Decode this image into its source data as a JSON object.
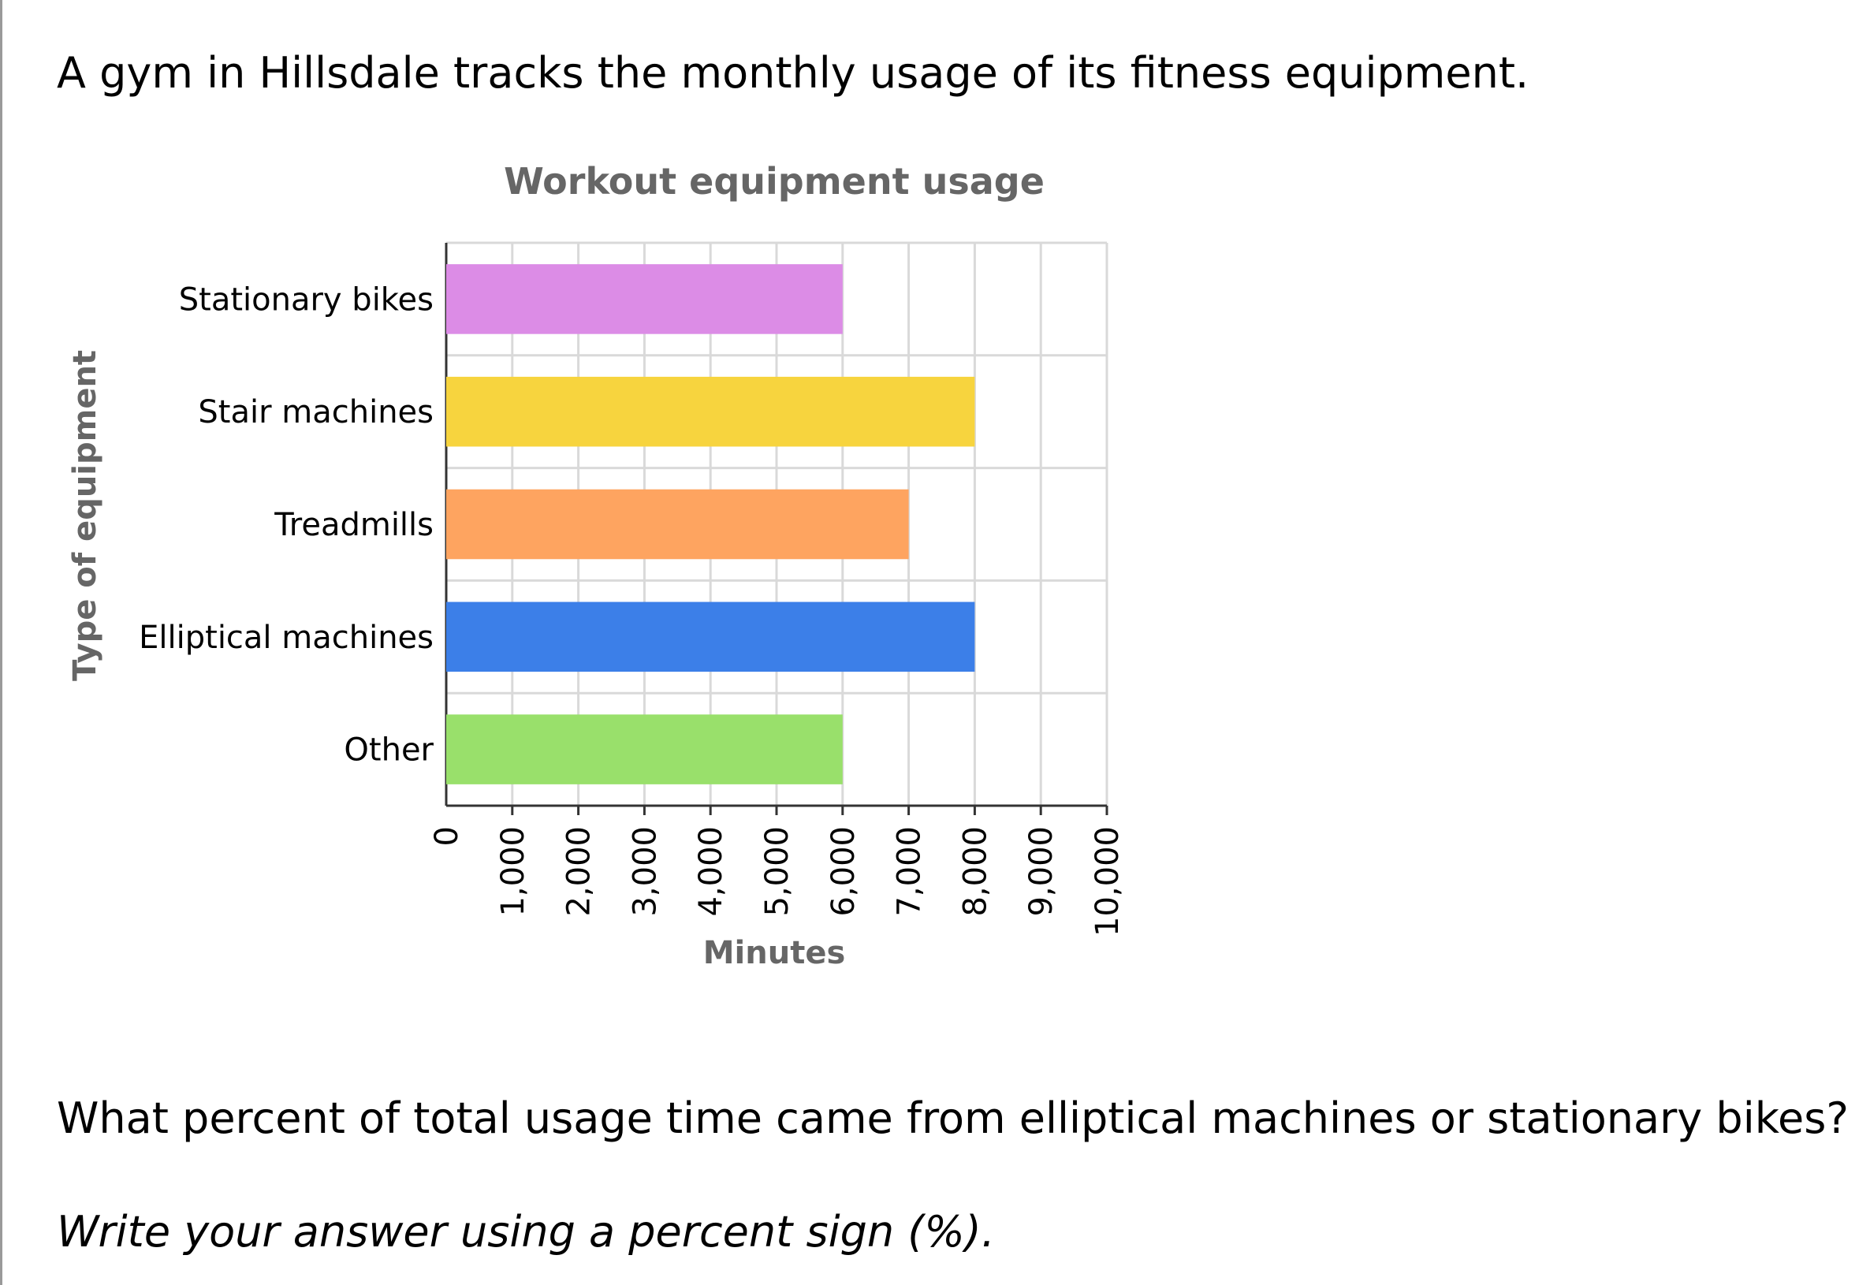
{
  "problem": {
    "intro": "A gym in Hillsdale tracks the monthly usage of its fitness equipment.",
    "question": "What percent of total usage time came from elliptical machines or stationary bikes?",
    "instruction": "Write your answer using a percent sign (%)."
  },
  "chart_data": {
    "type": "bar",
    "orientation": "horizontal",
    "title": "Workout equipment usage",
    "xlabel": "Minutes",
    "ylabel": "Type of equipment",
    "xlim": [
      0,
      10000
    ],
    "xticks": [
      0,
      1000,
      2000,
      3000,
      4000,
      5000,
      6000,
      7000,
      8000,
      9000,
      10000
    ],
    "xtick_labels": [
      "0",
      "1,000",
      "2,000",
      "3,000",
      "4,000",
      "5,000",
      "6,000",
      "7,000",
      "8,000",
      "9,000",
      "10,000"
    ],
    "grid": true,
    "categories": [
      "Stationary bikes",
      "Stair machines",
      "Treadmills",
      "Elliptical machines",
      "Other"
    ],
    "values": [
      6000,
      8000,
      7000,
      8000,
      6000
    ],
    "colors": [
      "#dc8ce6",
      "#f7d43e",
      "#fea460",
      "#3c7fe8",
      "#99e06b"
    ],
    "title_color": "#666666",
    "grid_color": "#d9d9d9"
  }
}
